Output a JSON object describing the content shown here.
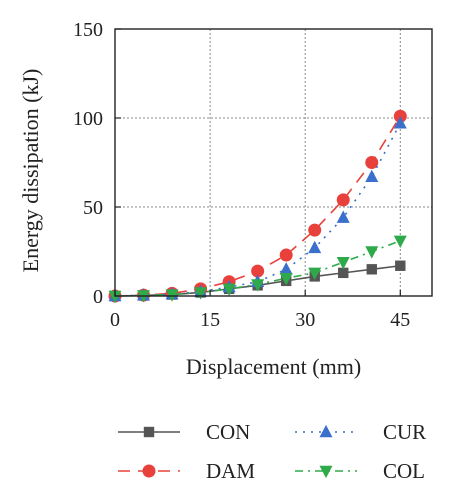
{
  "chart_data": {
    "type": "line",
    "title": "",
    "xlabel": "Displacement (mm)",
    "ylabel": "Energy dissipation (kJ)",
    "xlim": [
      0,
      50
    ],
    "ylim": [
      0,
      150
    ],
    "xticks": [
      0,
      15,
      30,
      45
    ],
    "yticks": [
      0,
      50,
      100,
      150
    ],
    "grid": true,
    "legend_position": "bottom",
    "series": [
      {
        "name": "CON",
        "color": "#555555",
        "marker": "square",
        "dash": "solid",
        "x": [
          0,
          4.5,
          9,
          13.5,
          18,
          22.5,
          27,
          31.5,
          36,
          40.5,
          45
        ],
        "y": [
          0,
          0.3,
          0.8,
          2,
          4,
          6,
          8.5,
          11,
          13,
          15,
          17
        ]
      },
      {
        "name": "DAM",
        "color": "#e8403a",
        "marker": "circle",
        "dash": "long-dash",
        "x": [
          0,
          4.5,
          9,
          13.5,
          18,
          22.5,
          27,
          31.5,
          36,
          40.5,
          45
        ],
        "y": [
          0,
          0.5,
          1.5,
          4,
          8,
          14,
          23,
          37,
          54,
          75,
          101
        ]
      },
      {
        "name": "CUR",
        "color": "#3a6fcc",
        "marker": "triangle-up",
        "dash": "dot",
        "x": [
          0,
          4.5,
          9,
          13.5,
          18,
          22.5,
          27,
          31.5,
          36,
          40.5,
          45
        ],
        "y": [
          0,
          0.4,
          1,
          2.5,
          5,
          8,
          15,
          27,
          44,
          67,
          97
        ]
      },
      {
        "name": "COL",
        "color": "#2eaa4a",
        "marker": "triangle-down",
        "dash": "dash-dot",
        "x": [
          0,
          4.5,
          9,
          13.5,
          18,
          22.5,
          27,
          31.5,
          36,
          40.5,
          45
        ],
        "y": [
          0,
          0.3,
          0.8,
          2,
          4,
          6.5,
          10,
          13,
          19,
          25,
          31
        ]
      }
    ]
  }
}
